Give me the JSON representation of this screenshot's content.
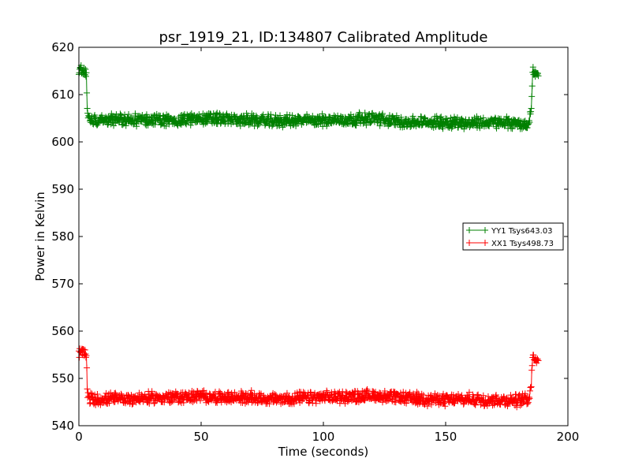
{
  "chart_data": {
    "type": "line",
    "title": "psr_1919_21, ID:134807 Calibrated Amplitude",
    "xlabel": "Time (seconds)",
    "ylabel": "Power in Kelvin",
    "xlim": [
      0,
      200
    ],
    "ylim": [
      540,
      620
    ],
    "xticks": [
      0,
      50,
      100,
      150,
      200
    ],
    "yticks": [
      540,
      550,
      560,
      570,
      580,
      590,
      600,
      610,
      620
    ],
    "grid": false,
    "legend_position": "center-right",
    "marker": "+",
    "series": [
      {
        "name": "YY1 Tsys643.03",
        "color": "#008000",
        "x": [
          0,
          1,
          2,
          3,
          3.5,
          4,
          6,
          10,
          20,
          30,
          40,
          50,
          60,
          70,
          80,
          90,
          100,
          110,
          120,
          130,
          140,
          150,
          160,
          170,
          180,
          184,
          185,
          185.5,
          186,
          187,
          188
        ],
        "y": [
          615,
          615.2,
          615.1,
          614.9,
          606,
          605,
          604.5,
          604.8,
          604.6,
          604.7,
          604.5,
          605.0,
          604.8,
          604.6,
          604.4,
          604.5,
          604.6,
          604.7,
          605.0,
          604.3,
          604.1,
          604.2,
          604.0,
          604.1,
          603.9,
          603.5,
          607,
          614.5,
          614.8,
          614.2,
          613.6
        ]
      },
      {
        "name": "XX1 Tsys498.73",
        "color": "#ff0000",
        "x": [
          0,
          1,
          2,
          3,
          3.5,
          4,
          6,
          10,
          20,
          30,
          40,
          50,
          60,
          70,
          80,
          90,
          100,
          110,
          120,
          130,
          140,
          150,
          160,
          170,
          180,
          184,
          185,
          185.5,
          186,
          187,
          188
        ],
        "y": [
          555.4,
          555.6,
          555.5,
          555.3,
          547,
          545.8,
          545.5,
          545.6,
          545.7,
          545.9,
          546.0,
          546.2,
          545.9,
          546.0,
          545.6,
          545.8,
          546.0,
          546.1,
          546.4,
          545.9,
          545.7,
          545.4,
          545.6,
          545.5,
          545.3,
          545.8,
          549,
          554.0,
          554.4,
          554.3,
          554.1
        ]
      }
    ]
  }
}
